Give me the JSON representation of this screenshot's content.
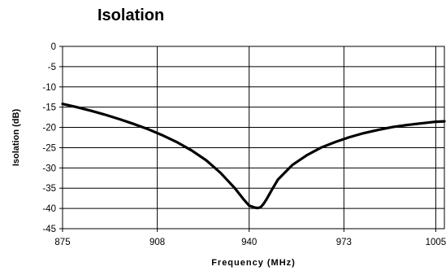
{
  "chart_data": {
    "type": "line",
    "title": "Isolation",
    "xlabel": "Frequency (MHz)",
    "ylabel": "Isolation (dB)",
    "xlim": [
      875,
      1008
    ],
    "ylim": [
      -45,
      0
    ],
    "x_ticks": [
      875,
      908,
      940,
      973,
      1005
    ],
    "y_ticks": [
      0,
      -5,
      -10,
      -15,
      -20,
      -25,
      -30,
      -35,
      -40,
      -45
    ],
    "grid": true,
    "series": [
      {
        "x": [
          875,
          880,
          885,
          890,
          895,
          900,
          905,
          910,
          915,
          920,
          925,
          930,
          935,
          938,
          940,
          942,
          943,
          944,
          945,
          946,
          948,
          950,
          955,
          960,
          965,
          970,
          975,
          980,
          985,
          990,
          995,
          1000,
          1005,
          1008
        ],
        "values": [
          -14.2,
          -15.0,
          -15.9,
          -16.9,
          -18.0,
          -19.2,
          -20.5,
          -22.0,
          -23.7,
          -25.7,
          -28.1,
          -31.2,
          -35.0,
          -37.7,
          -39.3,
          -39.8,
          -39.9,
          -39.7,
          -38.9,
          -37.8,
          -35.3,
          -32.9,
          -29.3,
          -26.9,
          -25.0,
          -23.6,
          -22.4,
          -21.4,
          -20.6,
          -19.9,
          -19.4,
          -19.0,
          -18.6,
          -18.5
        ]
      }
    ]
  }
}
